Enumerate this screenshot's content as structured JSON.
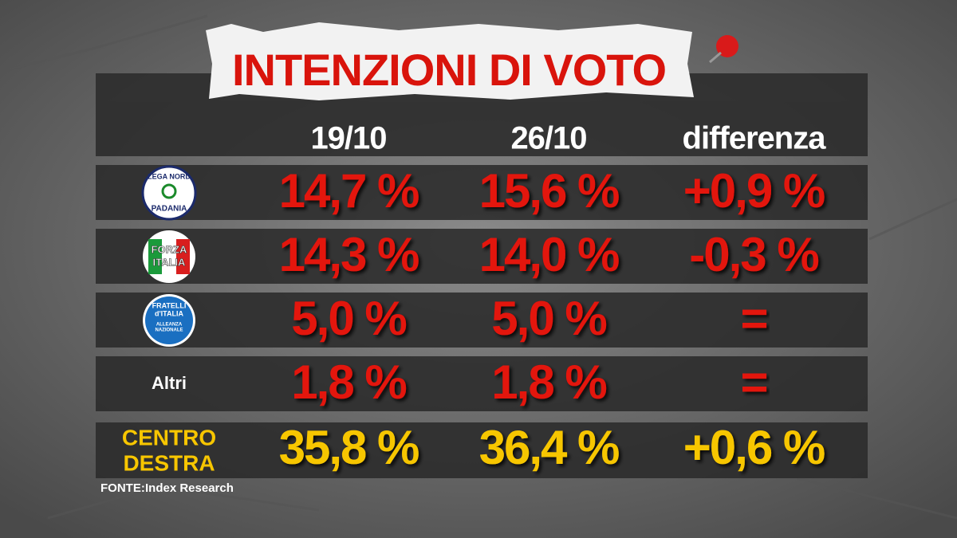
{
  "header": {
    "title": "INTENZIONI DI VOTO"
  },
  "table": {
    "columns": [
      "19/10",
      "26/10",
      "differenza"
    ],
    "rows": [
      {
        "logo_text": [
          "LEGA NORD",
          "PADANIA"
        ],
        "cells": [
          "14,7 %",
          "15,6 %",
          "+0,9 %"
        ]
      },
      {
        "logo_text": [
          "FORZA",
          "ITALIA"
        ],
        "cells": [
          "14,3 %",
          "14,0 %",
          "-0,3 %"
        ]
      },
      {
        "logo_text": [
          "FRATELLI",
          "d'ITALIA",
          "ALLEANZA",
          "NAZIONALE"
        ],
        "cells": [
          "5,0 %",
          "5,0 %",
          "="
        ]
      },
      {
        "label": "Altri",
        "cells": [
          "1,8 %",
          "1,8 %",
          "="
        ]
      }
    ],
    "total": {
      "label": [
        "CENTRO",
        "DESTRA"
      ],
      "cells": [
        "35,8 %",
        "36,4 %",
        "+0,6 %"
      ]
    }
  },
  "footer": {
    "source_label": "FONTE:",
    "source": "Index Research"
  }
}
